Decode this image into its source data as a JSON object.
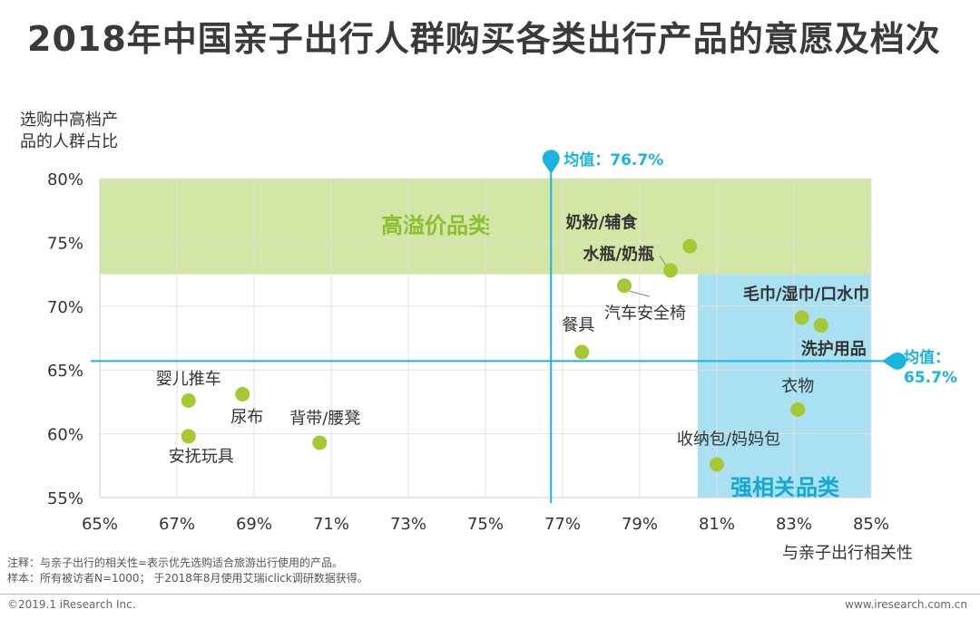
{
  "title": "2018年中国亲子出行人群购买各类出行产品的意愿及档次",
  "notes": {
    "note1": "注释：与亲子出行的相关性=表示优先选购适合旅游出行使用的产品。",
    "note2": "样本：所有被访者N=1000； 于2018年8月使用艾瑞iclick调研数据获得。"
  },
  "footer": {
    "copyright": "©2019.1 iResearch Inc.",
    "website": "www.iresearch.com.cn"
  },
  "colors": {
    "point": "#a6c832",
    "mean_line": "#1ab4dd",
    "high_premium_zone": "#d3e6a5",
    "strong_related_zone": "#a9e0f2",
    "high_premium_text": "#8cbf2f",
    "strong_related_text": "#13a9d4"
  },
  "chart_data": {
    "type": "scatter",
    "title": "2018年中国亲子出行人群购买各类出行产品的意愿及档次",
    "xlabel": "与亲子出行相关性",
    "ylabel_lines": [
      "选购中高档产",
      "品的人群占比"
    ],
    "xlim": [
      65,
      85
    ],
    "ylim": [
      55,
      80
    ],
    "x_ticks": [
      65,
      67,
      69,
      71,
      73,
      75,
      77,
      79,
      81,
      83,
      85
    ],
    "x_tick_labels": [
      "65%",
      "67%",
      "69%",
      "71%",
      "73%",
      "75%",
      "77%",
      "79%",
      "81%",
      "83%",
      "85%"
    ],
    "y_ticks": [
      55,
      60,
      65,
      70,
      75,
      80
    ],
    "y_tick_labels": [
      "55%",
      "60%",
      "65%",
      "70%",
      "75%",
      "80%"
    ],
    "grid": true,
    "mean_x": {
      "value": 76.7,
      "label": "均值：76.7%"
    },
    "mean_y": {
      "value": 65.7,
      "label_line1": "均值：",
      "label_line2": "65.7%"
    },
    "zones": [
      {
        "name": "高溢价品类",
        "x_range": [
          65,
          85
        ],
        "y_range": [
          72.5,
          80
        ]
      },
      {
        "name": "强相关品类",
        "x_range": [
          80.5,
          85
        ],
        "y_range": [
          55,
          72.5
        ]
      }
    ],
    "points": [
      {
        "label": "奶粉/辅食",
        "x": 80.3,
        "y": 74.7,
        "bold": true
      },
      {
        "label": "水瓶/奶瓶",
        "x": 79.8,
        "y": 72.8,
        "bold": true
      },
      {
        "label": "汽车安全椅",
        "x": 78.6,
        "y": 71.6,
        "bold": false
      },
      {
        "label": "餐具",
        "x": 77.5,
        "y": 66.4,
        "bold": false
      },
      {
        "label": "毛巾/湿巾/口水巾",
        "x": 83.2,
        "y": 69.1,
        "bold": true
      },
      {
        "label": "洗护用品",
        "x": 83.7,
        "y": 68.5,
        "bold": true
      },
      {
        "label": "衣物",
        "x": 83.1,
        "y": 61.9,
        "bold": false
      },
      {
        "label": "收纳包/妈妈包",
        "x": 81.0,
        "y": 57.6,
        "bold": false
      },
      {
        "label": "婴儿推车",
        "x": 67.3,
        "y": 62.6,
        "bold": false
      },
      {
        "label": "尿布",
        "x": 68.7,
        "y": 63.1,
        "bold": false
      },
      {
        "label": "安抚玩具",
        "x": 67.3,
        "y": 59.8,
        "bold": false
      },
      {
        "label": "背带/腰凳",
        "x": 70.7,
        "y": 59.3,
        "bold": false
      }
    ]
  }
}
